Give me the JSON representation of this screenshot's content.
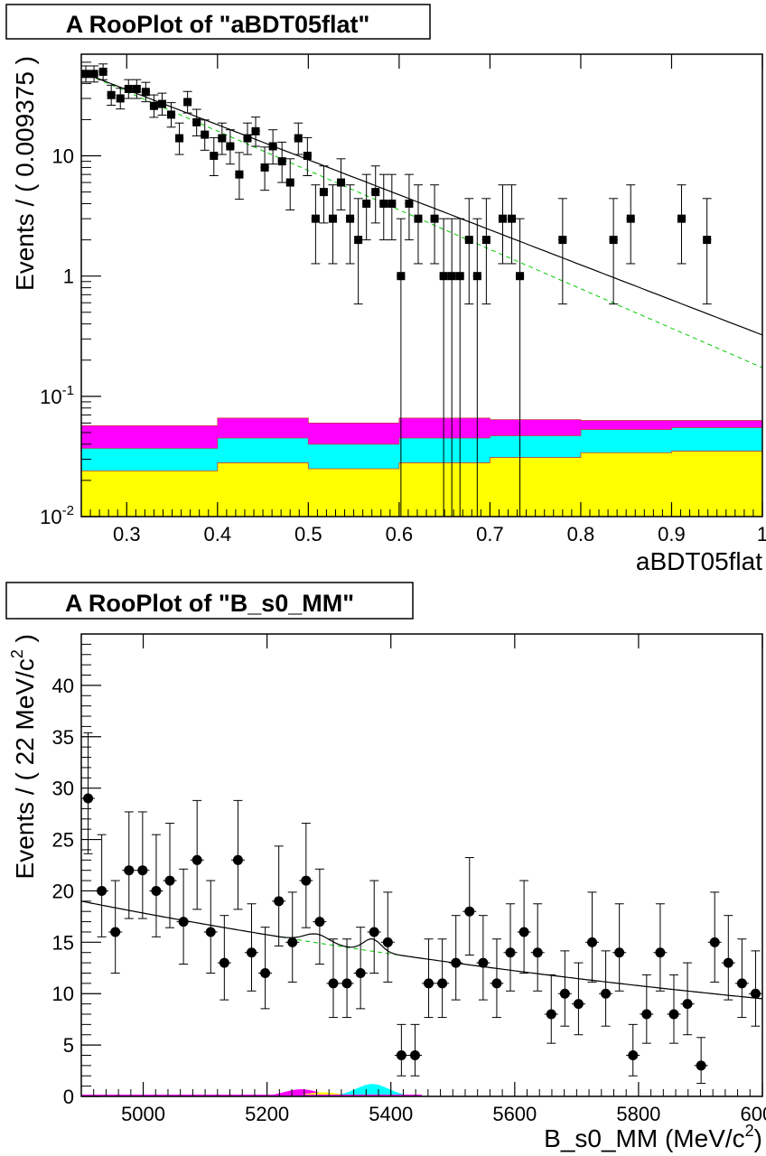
{
  "charts": [
    {
      "title": "A RooPlot of \"aBDT05flat\"",
      "xlabel": "aBDT05flat",
      "ylabel": "Events / ( 0.009375 )",
      "xticks": [
        "0.3",
        "0.4",
        "0.5",
        "0.6",
        "0.7",
        "0.8",
        "0.9",
        "1"
      ],
      "yticks": [
        {
          "base": "10",
          "exp": "-2",
          "v": 0.01
        },
        {
          "base": "10",
          "exp": "-1",
          "v": 0.1
        },
        {
          "base": "1",
          "exp": "",
          "v": 1
        },
        {
          "base": "10",
          "exp": "",
          "v": 10
        }
      ]
    },
    {
      "title": "A RooPlot of \"B_s0_MM\"",
      "xlabel_main": "B_s0_MM (MeV/c",
      "xlabel_sup": "2",
      "xlabel_end": ")",
      "ylabel_main": "Events / ( 22 MeV/c",
      "ylabel_sup": "2",
      "ylabel_end": " )",
      "xticks": [
        "5000",
        "5200",
        "5400",
        "5600",
        "5800",
        "6000"
      ],
      "yticks": [
        "0",
        "5",
        "10",
        "15",
        "20",
        "25",
        "30",
        "35",
        "40"
      ]
    }
  ],
  "chart_data": [
    {
      "type": "scatter",
      "yscale": "log",
      "xlim": [
        0.25,
        1.0
      ],
      "ylim": [
        0.01,
        70
      ],
      "x": [
        0.255,
        0.264,
        0.274,
        0.283,
        0.293,
        0.302,
        0.311,
        0.321,
        0.33,
        0.339,
        0.349,
        0.358,
        0.367,
        0.377,
        0.386,
        0.396,
        0.405,
        0.414,
        0.424,
        0.433,
        0.442,
        0.452,
        0.461,
        0.471,
        0.48,
        0.489,
        0.499,
        0.508,
        0.517,
        0.527,
        0.536,
        0.546,
        0.555,
        0.564,
        0.574,
        0.583,
        0.592,
        0.602,
        0.611,
        0.621,
        0.639,
        0.649,
        0.658,
        0.667,
        0.677,
        0.686,
        0.696,
        0.714,
        0.724,
        0.733,
        0.78,
        0.836,
        0.855,
        0.911,
        0.939
      ],
      "y": [
        48,
        48,
        50,
        32,
        30,
        36,
        36,
        34,
        26,
        27,
        22,
        14,
        28,
        19,
        15,
        10,
        14,
        12,
        7,
        14,
        16,
        8,
        12,
        9,
        6,
        14,
        10,
        3,
        5,
        3,
        6,
        3,
        2,
        4,
        5,
        4,
        4,
        1,
        4,
        3,
        3,
        1,
        1,
        1,
        2,
        1,
        2,
        3,
        3,
        1,
        2,
        2,
        3,
        3,
        2
      ],
      "series": [
        {
          "name": "total model",
          "values": "solid curve, 48 at 0.255 falling to 0.32 at 1.0"
        },
        {
          "name": "background",
          "values": "dashed curve, 0.17 at 1.0"
        }
      ],
      "stacked_components": [
        {
          "color": "#ffff00",
          "edges": [
            0.25,
            0.4,
            0.5,
            0.6,
            0.7,
            0.8,
            0.9,
            1.0
          ],
          "top": [
            0.024,
            0.028,
            0.025,
            0.028,
            0.031,
            0.034,
            0.035
          ]
        },
        {
          "color": "#00ffff",
          "edges": [
            0.25,
            0.4,
            0.5,
            0.6,
            0.7,
            0.8,
            0.9,
            1.0
          ],
          "top": [
            0.037,
            0.045,
            0.04,
            0.045,
            0.047,
            0.053,
            0.055
          ]
        },
        {
          "color": "#ff00ff",
          "edges": [
            0.25,
            0.4,
            0.5,
            0.6,
            0.7,
            0.8,
            0.9,
            1.0
          ],
          "top": [
            0.057,
            0.066,
            0.06,
            0.066,
            0.064,
            0.063,
            0.063
          ]
        }
      ],
      "grid": false
    },
    {
      "type": "scatter",
      "xlim": [
        4900,
        6000
      ],
      "ylim": [
        0,
        45
      ],
      "x": [
        4911,
        4933,
        4955,
        4977,
        4999,
        5021,
        5043,
        5065,
        5087,
        5109,
        5131,
        5153,
        5175,
        5197,
        5219,
        5241,
        5263,
        5285,
        5307,
        5329,
        5351,
        5373,
        5395,
        5417,
        5439,
        5461,
        5483,
        5505,
        5527,
        5549,
        5571,
        5593,
        5615,
        5637,
        5659,
        5681,
        5703,
        5725,
        5747,
        5769,
        5791,
        5813,
        5835,
        5857,
        5879,
        5901,
        5923,
        5945,
        5967,
        5989
      ],
      "y": [
        29,
        20,
        16,
        22,
        22,
        20,
        21,
        17,
        23,
        16,
        13,
        23,
        14,
        12,
        19,
        15,
        21,
        17,
        11,
        11,
        12,
        16,
        15,
        4,
        4,
        11,
        11,
        13,
        18,
        13,
        11,
        14,
        16,
        14,
        8,
        10,
        9,
        15,
        10,
        14,
        4,
        8,
        14,
        8,
        9,
        3,
        15,
        13,
        11,
        10
      ],
      "series": [
        {
          "name": "total model",
          "values": "solid curve, 19 at 4900 falling to 9.5 at 6000, bumps near 5280 and 5370"
        },
        {
          "name": "background",
          "values": "dashed curve, smooth decline"
        }
      ],
      "components": [
        {
          "color": "#ff00ff",
          "peak_x": 5255,
          "peak_y": 0.7
        },
        {
          "color": "#ffff00",
          "peak_x": 5290,
          "peak_y": 0.4
        },
        {
          "color": "#00ffff",
          "peak_x": 5370,
          "peak_y": 1.2
        }
      ],
      "grid": false
    }
  ]
}
